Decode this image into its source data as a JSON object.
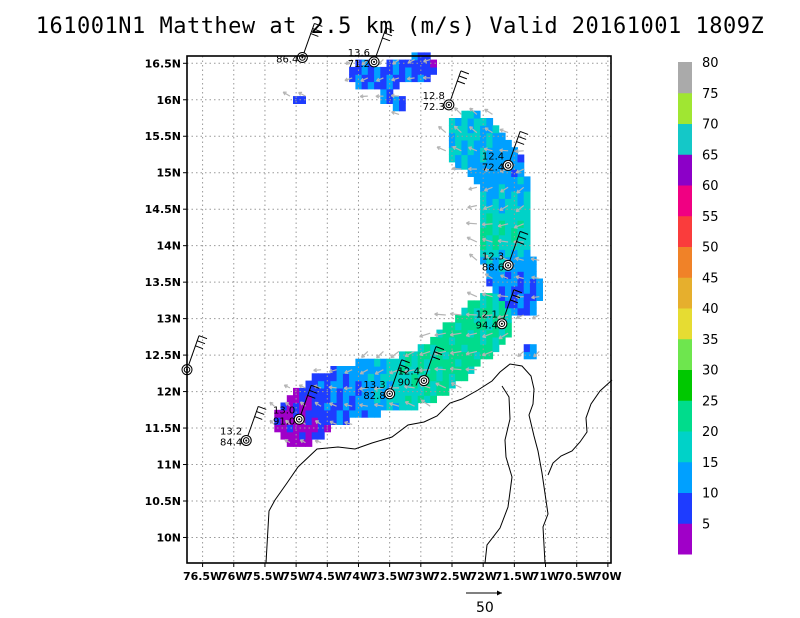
{
  "title": "161001N1 Matthew at 2.5 km (m/s) Valid 20161001  1809Z",
  "chart_data": {
    "type": "heatmap",
    "title": "161001N1 Matthew at 2.5 km (m/s) Valid 20161001  1809Z",
    "xlabel": "",
    "ylabel": "",
    "xlim": [
      -76.75,
      -69.95
    ],
    "ylim": [
      9.65,
      16.6
    ],
    "grid": true,
    "xticks": [
      -76.5,
      -76,
      -75.5,
      -75,
      -74.5,
      -74,
      -73.5,
      -73,
      -72.5,
      -72,
      -71.5,
      -71,
      -70.5,
      -70
    ],
    "xtick_labels": [
      "76.5W",
      "76W",
      "75.5W",
      "75W",
      "74.5W",
      "74W",
      "73.5W",
      "73W",
      "72.5W",
      "72W",
      "71.5W",
      "71W",
      "70.5W",
      "70W"
    ],
    "yticks": [
      10,
      10.5,
      11,
      11.5,
      12,
      12.5,
      13,
      13.5,
      14,
      14.5,
      15,
      15.5,
      16,
      16.5
    ],
    "ytick_labels": [
      "10N",
      "10.5N",
      "11N",
      "11.5N",
      "12N",
      "12.5N",
      "13N",
      "13.5N",
      "14N",
      "14.5N",
      "15N",
      "15.5N",
      "16N",
      "16.5N"
    ],
    "colorbar": {
      "levels": [
        0,
        5,
        10,
        15,
        20,
        25,
        30,
        35,
        40,
        45,
        50,
        55,
        60,
        65,
        70,
        75,
        80,
        85
      ],
      "labels": [
        "5",
        "10",
        "15",
        "20",
        "25",
        "30",
        "35",
        "40",
        "45",
        "50",
        "55",
        "60",
        "65",
        "70",
        "75",
        "80"
      ],
      "colors": [
        "#a000c8",
        "#1e3cff",
        "#00a0ff",
        "#00d2c8",
        "#00dc8c",
        "#00c800",
        "#6ee64e",
        "#e6dc32",
        "#e6af2d",
        "#f08228",
        "#fa3c3c",
        "#f00082",
        "#8c00c8",
        "#14c8c8",
        "#a0e632",
        "#aaaaaa"
      ]
    },
    "swaths": [
      {
        "points": [
          [
            -74.95,
            11.6
          ],
          [
            -74.5,
            11.9
          ],
          [
            -73.9,
            12.05
          ],
          [
            -73.4,
            12.1
          ],
          [
            -72.9,
            12.25
          ],
          [
            -72.5,
            12.5
          ],
          [
            -72.2,
            12.75
          ],
          [
            -71.9,
            12.95
          ]
        ],
        "width": 0.75,
        "values": [
          3,
          9,
          12,
          17,
          21,
          22,
          22,
          20
        ]
      },
      {
        "points": [
          [
            -72.2,
            15.45
          ],
          [
            -71.95,
            15.25
          ],
          [
            -71.7,
            14.95
          ],
          [
            -71.65,
            14.5
          ],
          [
            -71.7,
            14.15
          ],
          [
            -71.6,
            13.75
          ],
          [
            -71.45,
            13.4
          ]
        ],
        "width": 0.8,
        "values": [
          16,
          13,
          12,
          17,
          21,
          13,
          10
        ]
      },
      {
        "points": [
          [
            -74.0,
            16.35
          ],
          [
            -73.6,
            16.3
          ],
          [
            -73.3,
            16.4
          ],
          [
            -72.9,
            16.45
          ]
        ],
        "width": 0.35,
        "values": [
          10,
          9,
          10,
          7
        ]
      },
      {
        "points": [
          [
            -73.6,
            16.05
          ],
          [
            -73.35,
            15.95
          ]
        ],
        "width": 0.2,
        "values": [
          10,
          10
        ]
      },
      {
        "points": [
          [
            -74.95,
            16.0
          ],
          [
            -74.95,
            16.0
          ]
        ],
        "width": 0.12,
        "values": [
          10,
          10
        ]
      },
      {
        "points": [
          [
            -71.25,
            12.55
          ],
          [
            -71.25,
            12.55
          ]
        ],
        "width": 0.2,
        "values": [
          10,
          10
        ]
      }
    ],
    "centers": [
      {
        "lon": -74.9,
        "lat": 16.58,
        "top": "",
        "bottom": "86.4"
      },
      {
        "lon": -73.75,
        "lat": 16.52,
        "top": "13.6",
        "bottom": "71.2"
      },
      {
        "lon": -72.55,
        "lat": 15.93,
        "top": "12.8",
        "bottom": "72.3"
      },
      {
        "lon": -71.6,
        "lat": 15.1,
        "top": "12.4",
        "bottom": "72.4"
      },
      {
        "lon": -71.6,
        "lat": 13.73,
        "top": "12.3",
        "bottom": "88.6"
      },
      {
        "lon": -71.7,
        "lat": 12.93,
        "top": "12.1",
        "bottom": "94.4"
      },
      {
        "lon": -72.95,
        "lat": 12.15,
        "top": "12.4",
        "bottom": "90.7"
      },
      {
        "lon": -73.5,
        "lat": 11.97,
        "top": "13.3",
        "bottom": "82.8"
      },
      {
        "lon": -74.95,
        "lat": 11.62,
        "top": "13.0",
        "bottom": "91.0"
      },
      {
        "lon": -75.8,
        "lat": 11.33,
        "top": "13.2",
        "bottom": "84.4"
      },
      {
        "lon": -76.75,
        "lat": 12.3,
        "top": "",
        "bottom": ""
      }
    ],
    "reference_vector": {
      "label": "50"
    }
  }
}
